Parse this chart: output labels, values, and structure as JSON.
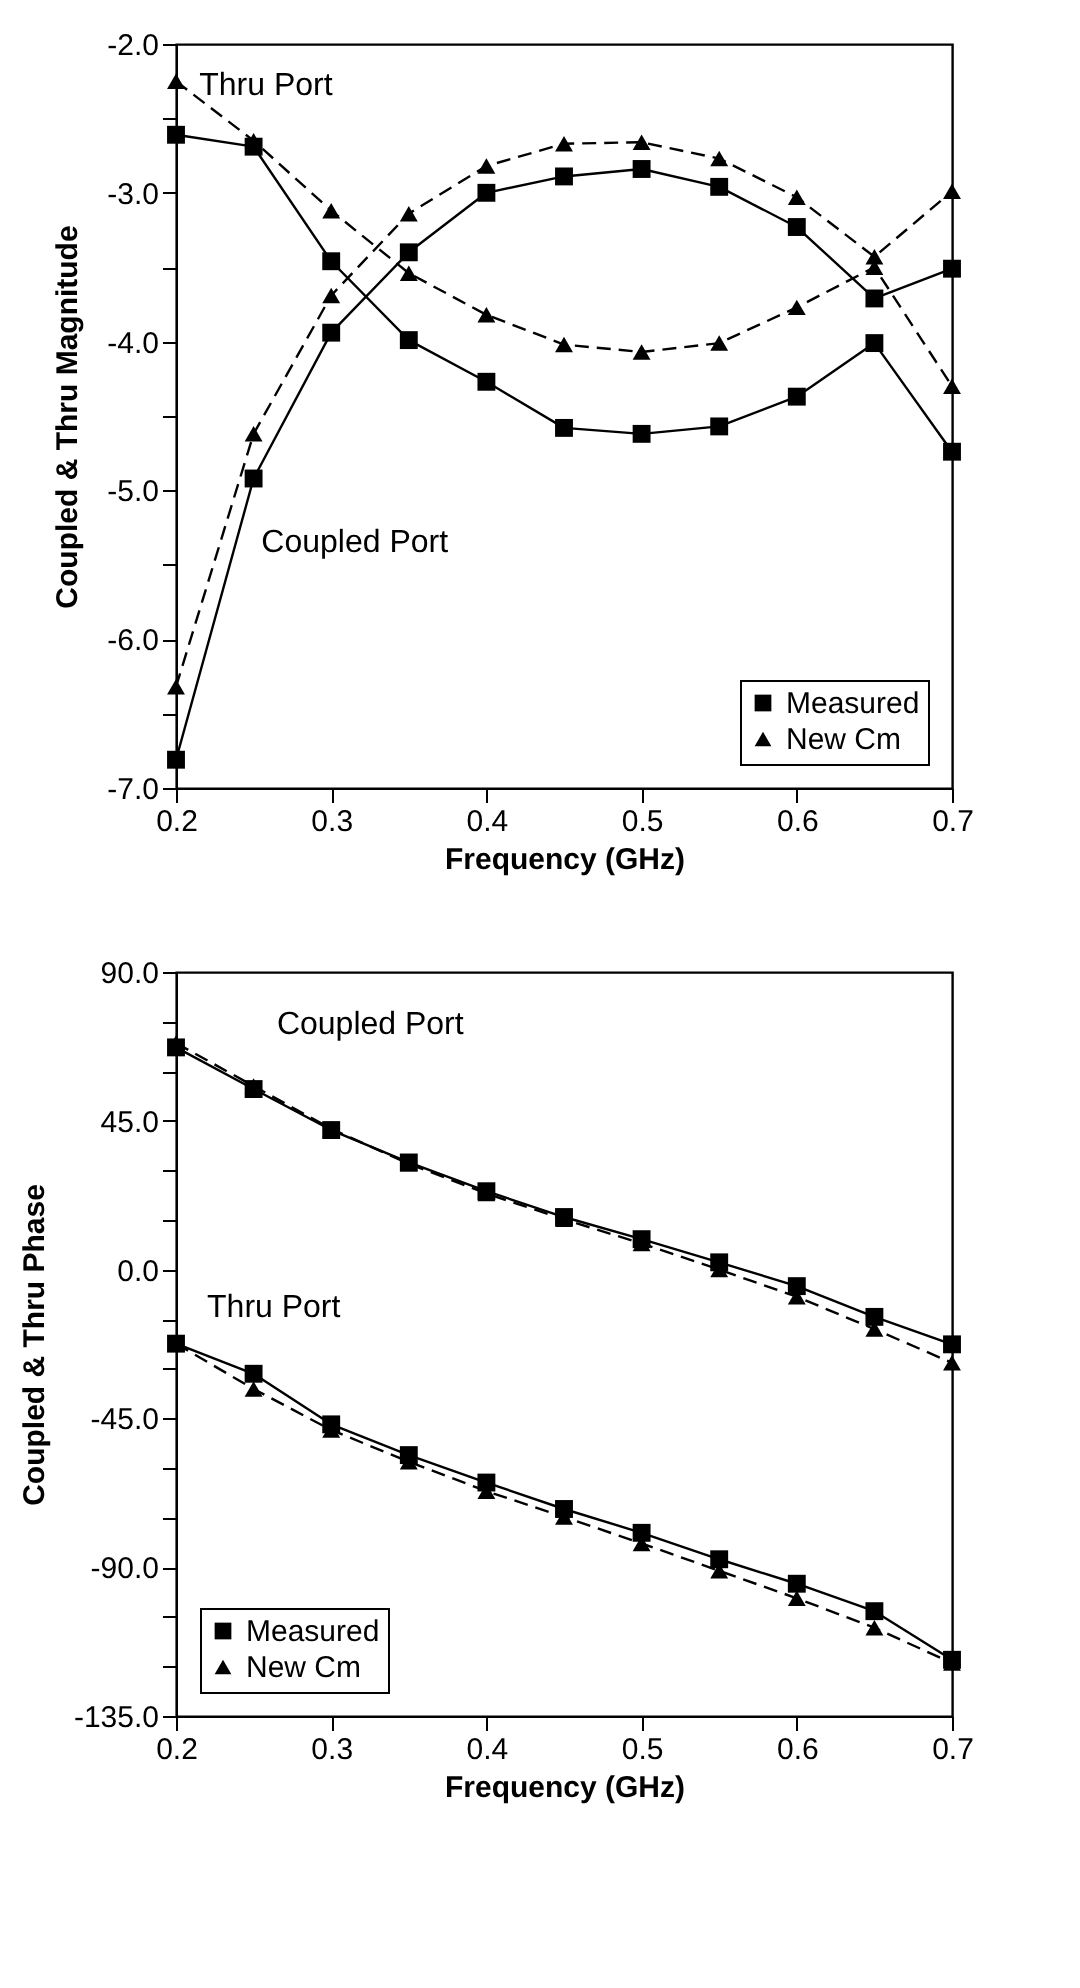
{
  "chart_data": [
    {
      "type": "line",
      "xlabel": "Frequency (GHz)",
      "ylabel": "Coupled & Thru Magnitude",
      "x": [
        0.2,
        0.25,
        0.3,
        0.35,
        0.4,
        0.45,
        0.5,
        0.55,
        0.6,
        0.65,
        0.7
      ],
      "series": [
        {
          "name": "Measured",
          "color": "#000000",
          "marker": "square",
          "line_style": "solid",
          "values": [
            -2.61,
            -2.69,
            -3.46,
            -3.99,
            -4.27,
            -4.58,
            -4.62,
            -4.57,
            -4.37,
            -4.01,
            -4.74
          ]
        },
        {
          "name": "Measured",
          "color": "#000000",
          "marker": "square",
          "line_style": "solid",
          "values": [
            -6.81,
            -4.92,
            -3.94,
            -3.4,
            -3.0,
            -2.89,
            -2.84,
            -2.96,
            -3.23,
            -3.71,
            -3.51
          ]
        },
        {
          "name": "New Cm",
          "color": "#000000",
          "marker": "triangle",
          "line_style": "dashed",
          "values": [
            -2.25,
            -2.65,
            -3.12,
            -3.54,
            -3.82,
            -4.02,
            -4.07,
            -4.01,
            -3.77,
            -3.5,
            -4.3
          ]
        },
        {
          "name": "New Cm",
          "color": "#000000",
          "marker": "triangle",
          "line_style": "dashed",
          "values": [
            -6.32,
            -4.62,
            -3.69,
            -3.14,
            -2.82,
            -2.67,
            -2.66,
            -2.77,
            -3.03,
            -3.43,
            -2.99
          ]
        }
      ],
      "xlim": [
        0.2,
        0.7
      ],
      "xticks": [
        0.2,
        0.3,
        0.4,
        0.5,
        0.6,
        0.7
      ],
      "ylim": [
        -7.0,
        -2.0
      ],
      "yticks": [
        {
          "value": -7,
          "label": "-7.0"
        },
        {
          "value": -6.5,
          "label": null
        },
        {
          "value": -6,
          "label": "-6.0"
        },
        {
          "value": -5.5,
          "label": null
        },
        {
          "value": -5,
          "label": "-5.0"
        },
        {
          "value": -4.5,
          "label": null
        },
        {
          "value": -4,
          "label": "-4.0"
        },
        {
          "value": -3.5,
          "label": null
        },
        {
          "value": -3,
          "label": "-3.0"
        },
        {
          "value": -2.5,
          "label": null
        },
        {
          "value": -2,
          "label": "-2.0"
        }
      ],
      "annotations": [
        "Thru Port",
        "Coupled Port"
      ],
      "legend": "bottom right",
      "grid": false
    },
    {
      "type": "line",
      "xlabel": "Frequency (GHz)",
      "ylabel": "Coupled & Thru Phase",
      "x": [
        0.2,
        0.25,
        0.3,
        0.35,
        0.4,
        0.45,
        0.5,
        0.55,
        0.6,
        0.65,
        0.7
      ],
      "series": [
        {
          "name": "Measured",
          "color": "#000000",
          "marker": "square",
          "line_style": "solid",
          "values": [
            67.2,
            54.6,
            42.2,
            32.4,
            23.7,
            15.9,
            9.2,
            2.2,
            -5.0,
            -14.3,
            -22.6
          ]
        },
        {
          "name": "Measured",
          "color": "#000000",
          "marker": "square",
          "line_style": "solid",
          "values": [
            -22.4,
            -31.5,
            -46.8,
            -56.1,
            -64.4,
            -72.4,
            -79.6,
            -87.6,
            -95.0,
            -103.3,
            -118.0
          ]
        },
        {
          "name": "New Cm",
          "color": "#000000",
          "marker": "triangle",
          "line_style": "dashed",
          "values": [
            68.5,
            55.5,
            42.6,
            32.0,
            23.0,
            15.2,
            7.9,
            0.0,
            -8.2,
            -18.0,
            -28.2
          ]
        },
        {
          "name": "New Cm",
          "color": "#000000",
          "marker": "triangle",
          "line_style": "dashed",
          "values": [
            -22.4,
            -36.1,
            -48.5,
            -58.1,
            -67.0,
            -74.8,
            -82.8,
            -91.1,
            -99.4,
            -108.3,
            -119.0
          ]
        }
      ],
      "xlim": [
        0.2,
        0.7
      ],
      "xticks": [
        0.2,
        0.3,
        0.4,
        0.5,
        0.6,
        0.7
      ],
      "ylim": [
        -135.0,
        90.0
      ],
      "yticks": [
        {
          "value": -135,
          "label": "-135.0"
        },
        {
          "value": -120,
          "label": null
        },
        {
          "value": -105,
          "label": null
        },
        {
          "value": -90,
          "label": "-90.0"
        },
        {
          "value": -75,
          "label": null
        },
        {
          "value": -60,
          "label": null
        },
        {
          "value": -45,
          "label": "-45.0"
        },
        {
          "value": -30,
          "label": null
        },
        {
          "value": -15,
          "label": null
        },
        {
          "value": 0,
          "label": "0.0"
        },
        {
          "value": 15,
          "label": null
        },
        {
          "value": 30,
          "label": null
        },
        {
          "value": 45,
          "label": "45.0"
        },
        {
          "value": 60,
          "label": null
        },
        {
          "value": 75,
          "label": null
        },
        {
          "value": 90,
          "label": "90.0"
        }
      ],
      "annotations": [
        "Coupled Port",
        "Thru Port"
      ],
      "legend": "bottom left",
      "grid": false
    }
  ]
}
